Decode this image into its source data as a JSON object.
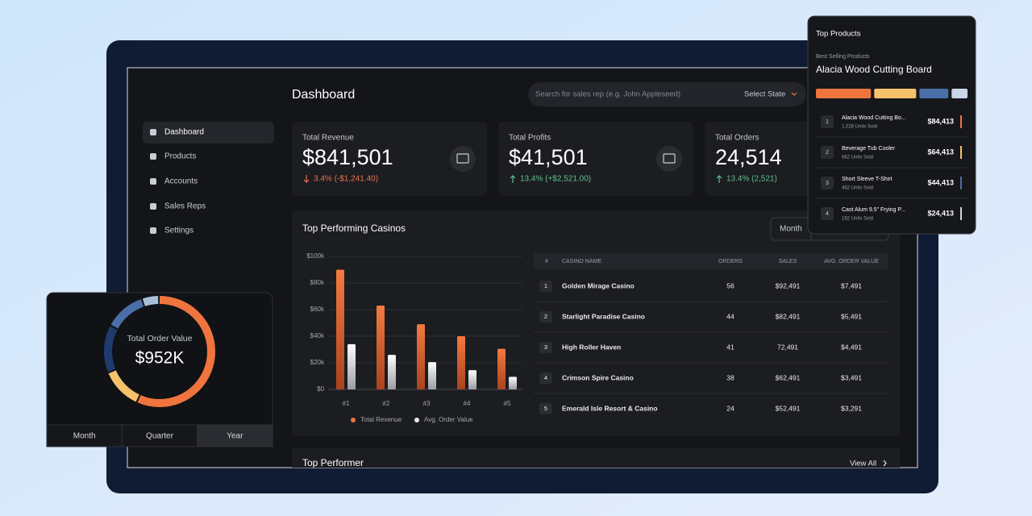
{
  "sidebar": {
    "items": [
      "Dashboard",
      "Products",
      "Accounts",
      "Sales Reps",
      "Settings"
    ],
    "active": 0
  },
  "header": {
    "title": "Dashboard",
    "search_placeholder": "Search for sales rep (e.g. John Appleseed)",
    "state_select": "Select State"
  },
  "kpis": [
    {
      "label": "Total Revenue",
      "value": "$841,501",
      "change": "3.4% (-$1,241.40)",
      "trend": "down"
    },
    {
      "label": "Total Profits",
      "value": "$41,501",
      "change": "13.4% (+$2,521.00)",
      "trend": "up"
    },
    {
      "label": "Total Orders",
      "value": "24,514",
      "change": "13.4% (2,521)",
      "trend": "up"
    }
  ],
  "casinos": {
    "title": "Top Performing Casinos",
    "period": "Month",
    "table": {
      "headers": [
        "#",
        "CASINO NAME",
        "ORDERS",
        "SALES",
        "AVG. ORDER VALUE"
      ],
      "rows": [
        [
          "1",
          "Golden Mirage Casino",
          "56",
          "$92,491",
          "$7,491"
        ],
        [
          "2",
          "Starlight Paradise Casino",
          "44",
          "$82,491",
          "$5,491"
        ],
        [
          "3",
          "High Roller Haven",
          "41",
          "72,491",
          "$4,491"
        ],
        [
          "4",
          "Crimson Spire Casino",
          "38",
          "$62,491",
          "$3,491"
        ],
        [
          "5",
          "Emerald Isle Resort & Casino",
          "24",
          "$52,491",
          "$3,291"
        ]
      ]
    }
  },
  "top_performer": {
    "title": "Top Performer",
    "link": "View All"
  },
  "top_products": {
    "title": "Top Products",
    "subtitle": "Best Selling Products",
    "best": "Alacia Wood Cutting Board",
    "items": [
      {
        "rank": "1",
        "name": "Alacia Wood Cutting Bo...",
        "units": "1,028 Units Sold"
      },
      {
        "rank": "2",
        "name": "Beverage Tub Cooler",
        "units": "662 Units Sold"
      },
      {
        "rank": "3",
        "name": "Short Sleeve T-Shirt",
        "units": "462 Units Sold"
      },
      {
        "rank": "4",
        "name": "Cast Alum 9.5\" Frying P...",
        "units": "162 Units Sold"
      }
    ]
  },
  "order_value": {
    "label": "Total Order Value",
    "value": "$952K",
    "tabs": [
      "Month",
      "Quarter",
      "Year"
    ],
    "active_tab": 2
  },
  "chart_data": [
    {
      "type": "bar",
      "categories": [
        "#1",
        "#2",
        "#3",
        "#4",
        "#5"
      ],
      "series": [
        {
          "name": "Total Revenue",
          "color": "#f0743e",
          "values": [
            90000,
            63000,
            49000,
            40000,
            30500
          ]
        },
        {
          "name": "Avg. Order Value",
          "color": "#e6e7ea",
          "values": [
            34000,
            26000,
            20500,
            14500,
            9500
          ]
        }
      ],
      "ylim": [
        0,
        100000
      ],
      "yticks": [
        {
          "value": 0,
          "label": "$0"
        },
        {
          "value": 20000,
          "label": "$20k"
        },
        {
          "value": 40000,
          "label": "$40k"
        },
        {
          "value": 60000,
          "label": "$60k"
        },
        {
          "value": 80000,
          "label": "$80k"
        },
        {
          "value": 100000,
          "label": "$100k"
        }
      ],
      "grid": true
    },
    {
      "type": "donut",
      "values": [
        57,
        12,
        14,
        12,
        5
      ],
      "colors": [
        "#f0743e",
        "#f5c26b",
        "#1f3b6e",
        "#4a6ea8",
        "#a9bfd8"
      ]
    },
    {
      "type": "stacked_bar",
      "values": [
        84413,
        64413,
        44413,
        24413
      ],
      "value_labels": [
        "$84,413",
        "$64,413",
        "$44,413",
        "$24,413"
      ],
      "colors": [
        "#f0743e",
        "#f5c26b",
        "#4a6ea8",
        "#c9d6e6"
      ]
    }
  ]
}
